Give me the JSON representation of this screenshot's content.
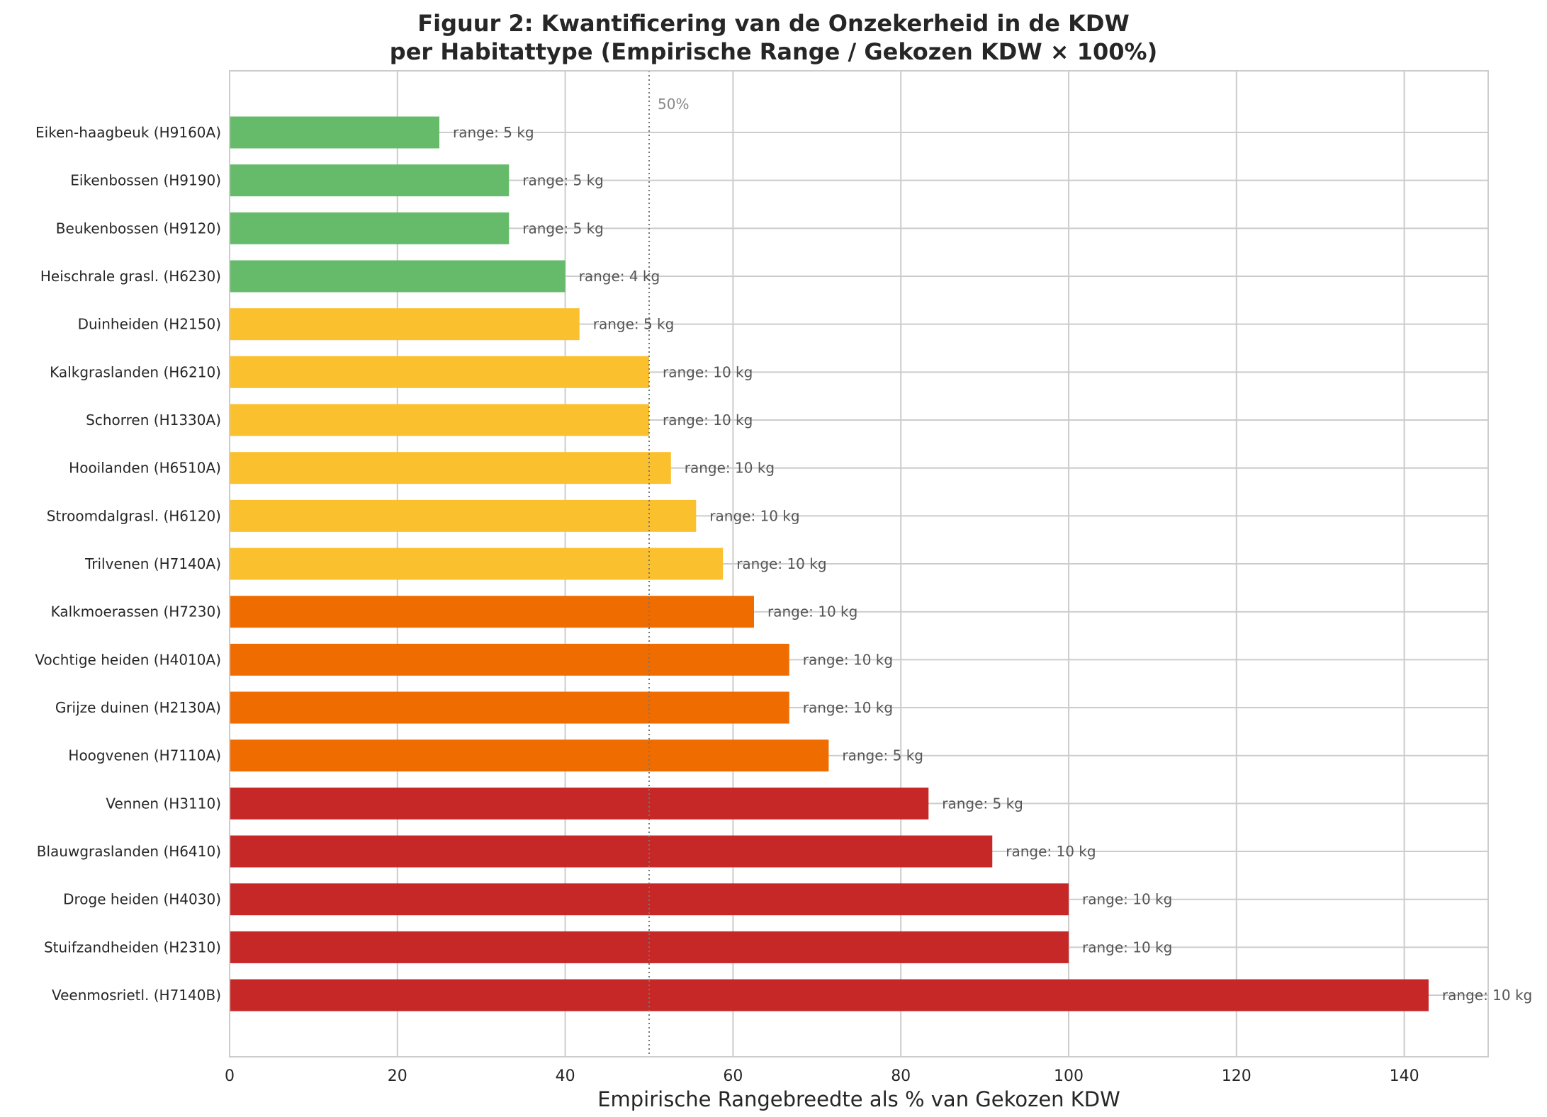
{
  "chart_data": {
    "type": "bar",
    "orientation": "horizontal",
    "title_line1": "Figuur 2: Kwantificering van de Onzekerheid in de KDW",
    "title_line2": "per Habitattype (Empirische Range / Gekozen KDW × 100%)",
    "xlabel": "Empirische Rangebreedte als % van Gekozen KDW",
    "ylabel": "",
    "xlim": [
      0,
      150
    ],
    "xticks": [
      0,
      20,
      40,
      60,
      80,
      100,
      120,
      140
    ],
    "grid": true,
    "reference_line": {
      "x": 50,
      "label": "50%",
      "style": "dotted"
    },
    "colors": {
      "green": "#66bb6a",
      "yellow": "#fbc02d",
      "orange": "#ef6c00",
      "red": "#c62828"
    },
    "bars": [
      {
        "category": "Eiken-haagbeuk (H9160A)",
        "value": 25.0,
        "annotation": "range: 5 kg",
        "color": "green"
      },
      {
        "category": "Eikenbossen (H9190)",
        "value": 33.3,
        "annotation": "range: 5 kg",
        "color": "green"
      },
      {
        "category": "Beukenbossen (H9120)",
        "value": 33.3,
        "annotation": "range: 5 kg",
        "color": "green"
      },
      {
        "category": "Heischrale grasl. (H6230)",
        "value": 40.0,
        "annotation": "range: 4 kg",
        "color": "green"
      },
      {
        "category": "Duinheiden (H2150)",
        "value": 41.7,
        "annotation": "range: 5 kg",
        "color": "yellow"
      },
      {
        "category": "Kalkgraslanden (H6210)",
        "value": 50.0,
        "annotation": "range: 10 kg",
        "color": "yellow"
      },
      {
        "category": "Schorren (H1330A)",
        "value": 50.0,
        "annotation": "range: 10 kg",
        "color": "yellow"
      },
      {
        "category": "Hooilanden (H6510A)",
        "value": 52.6,
        "annotation": "range: 10 kg",
        "color": "yellow"
      },
      {
        "category": "Stroomdalgrasl. (H6120)",
        "value": 55.6,
        "annotation": "range: 10 kg",
        "color": "yellow"
      },
      {
        "category": "Trilvenen (H7140A)",
        "value": 58.8,
        "annotation": "range: 10 kg",
        "color": "yellow"
      },
      {
        "category": "Kalkmoerassen (H7230)",
        "value": 62.5,
        "annotation": "range: 10 kg",
        "color": "orange"
      },
      {
        "category": "Vochtige heiden (H4010A)",
        "value": 66.7,
        "annotation": "range: 10 kg",
        "color": "orange"
      },
      {
        "category": "Grijze duinen (H2130A)",
        "value": 66.7,
        "annotation": "range: 10 kg",
        "color": "orange"
      },
      {
        "category": "Hoogvenen (H7110A)",
        "value": 71.4,
        "annotation": "range: 5 kg",
        "color": "orange"
      },
      {
        "category": "Vennen (H3110)",
        "value": 83.3,
        "annotation": "range: 5 kg",
        "color": "red"
      },
      {
        "category": "Blauwgraslanden (H6410)",
        "value": 90.9,
        "annotation": "range: 10 kg",
        "color": "red"
      },
      {
        "category": "Droge heiden (H4030)",
        "value": 100.0,
        "annotation": "range: 10 kg",
        "color": "red"
      },
      {
        "category": "Stuifzandheiden (H2310)",
        "value": 100.0,
        "annotation": "range: 10 kg",
        "color": "red"
      },
      {
        "category": "Veenmosrietl. (H7140B)",
        "value": 142.9,
        "annotation": "range: 10 kg",
        "color": "red"
      }
    ]
  }
}
